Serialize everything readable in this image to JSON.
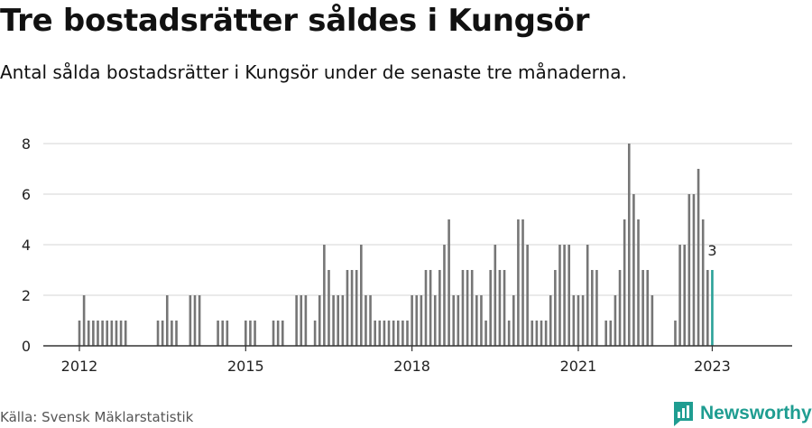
{
  "header": {
    "title": "Tre bostadsrätter såldes i Kungsör",
    "subtitle": "Antal sålda bostadsrätter i Kungsör under de senaste tre månaderna."
  },
  "footer": {
    "source": "Källa: Svensk Mäklarstatistik",
    "brand": "Newsworthy"
  },
  "colors": {
    "bar": "#767676",
    "highlight": "#2aa198",
    "grid": "#dddddd",
    "axis": "#333333",
    "brand": "#1f9d91"
  },
  "chart_data": {
    "type": "bar",
    "x_start": "2012-01",
    "x_end": "2023-01",
    "y_ticks": [
      0,
      2,
      4,
      6,
      8
    ],
    "x_tick_labels": [
      "2012",
      "2015",
      "2018",
      "2021",
      "2023"
    ],
    "ylim": [
      0,
      8
    ],
    "grid": true,
    "highlight_label": "3",
    "months": [
      [
        "2012-01",
        1
      ],
      [
        "2012-02",
        2
      ],
      [
        "2012-03",
        1
      ],
      [
        "2012-04",
        1
      ],
      [
        "2012-05",
        1
      ],
      [
        "2012-06",
        1
      ],
      [
        "2012-07",
        1
      ],
      [
        "2012-08",
        1
      ],
      [
        "2012-09",
        1
      ],
      [
        "2012-10",
        1
      ],
      [
        "2012-11",
        1
      ],
      [
        "2013-06",
        1
      ],
      [
        "2013-07",
        1
      ],
      [
        "2013-08",
        2
      ],
      [
        "2013-09",
        1
      ],
      [
        "2013-10",
        1
      ],
      [
        "2014-01",
        2
      ],
      [
        "2014-02",
        2
      ],
      [
        "2014-03",
        2
      ],
      [
        "2014-07",
        1
      ],
      [
        "2014-08",
        1
      ],
      [
        "2014-09",
        1
      ],
      [
        "2015-01",
        1
      ],
      [
        "2015-02",
        1
      ],
      [
        "2015-03",
        1
      ],
      [
        "2015-07",
        1
      ],
      [
        "2015-08",
        1
      ],
      [
        "2015-09",
        1
      ],
      [
        "2015-12",
        2
      ],
      [
        "2016-01",
        2
      ],
      [
        "2016-02",
        2
      ],
      [
        "2016-04",
        1
      ],
      [
        "2016-05",
        2
      ],
      [
        "2016-06",
        4
      ],
      [
        "2016-07",
        3
      ],
      [
        "2016-08",
        2
      ],
      [
        "2016-09",
        2
      ],
      [
        "2016-10",
        2
      ],
      [
        "2016-11",
        3
      ],
      [
        "2016-12",
        3
      ],
      [
        "2017-01",
        3
      ],
      [
        "2017-02",
        4
      ],
      [
        "2017-03",
        2
      ],
      [
        "2017-04",
        2
      ],
      [
        "2017-05",
        1
      ],
      [
        "2017-06",
        1
      ],
      [
        "2017-07",
        1
      ],
      [
        "2017-08",
        1
      ],
      [
        "2017-09",
        1
      ],
      [
        "2017-10",
        1
      ],
      [
        "2017-11",
        1
      ],
      [
        "2017-12",
        1
      ],
      [
        "2018-01",
        2
      ],
      [
        "2018-02",
        2
      ],
      [
        "2018-03",
        2
      ],
      [
        "2018-04",
        3
      ],
      [
        "2018-05",
        3
      ],
      [
        "2018-06",
        2
      ],
      [
        "2018-07",
        3
      ],
      [
        "2018-08",
        4
      ],
      [
        "2018-09",
        5
      ],
      [
        "2018-10",
        2
      ],
      [
        "2018-11",
        2
      ],
      [
        "2018-12",
        3
      ],
      [
        "2019-01",
        3
      ],
      [
        "2019-02",
        3
      ],
      [
        "2019-03",
        2
      ],
      [
        "2019-04",
        2
      ],
      [
        "2019-05",
        1
      ],
      [
        "2019-06",
        3
      ],
      [
        "2019-07",
        4
      ],
      [
        "2019-08",
        3
      ],
      [
        "2019-09",
        3
      ],
      [
        "2019-10",
        1
      ],
      [
        "2019-11",
        2
      ],
      [
        "2019-12",
        5
      ],
      [
        "2020-01",
        5
      ],
      [
        "2020-02",
        4
      ],
      [
        "2020-03",
        1
      ],
      [
        "2020-04",
        1
      ],
      [
        "2020-05",
        1
      ],
      [
        "2020-06",
        1
      ],
      [
        "2020-07",
        2
      ],
      [
        "2020-08",
        3
      ],
      [
        "2020-09",
        4
      ],
      [
        "2020-10",
        4
      ],
      [
        "2020-11",
        4
      ],
      [
        "2020-12",
        2
      ],
      [
        "2021-01",
        2
      ],
      [
        "2021-02",
        2
      ],
      [
        "2021-03",
        4
      ],
      [
        "2021-04",
        3
      ],
      [
        "2021-05",
        3
      ],
      [
        "2021-07",
        1
      ],
      [
        "2021-08",
        1
      ],
      [
        "2021-09",
        2
      ],
      [
        "2021-10",
        3
      ],
      [
        "2021-11",
        5
      ],
      [
        "2021-12",
        8
      ],
      [
        "2022-01",
        6
      ],
      [
        "2022-02",
        5
      ],
      [
        "2022-03",
        3
      ],
      [
        "2022-04",
        3
      ],
      [
        "2022-05",
        2
      ],
      [
        "2022-10",
        1
      ],
      [
        "2022-11",
        4
      ],
      [
        "2022-12",
        4
      ],
      [
        "2023-01",
        6
      ],
      [
        "2023-02",
        6
      ],
      [
        "2023-03",
        7
      ],
      [
        "2023-04",
        5
      ],
      [
        "2023-05",
        3
      ],
      [
        "2023-06",
        3
      ]
    ]
  }
}
